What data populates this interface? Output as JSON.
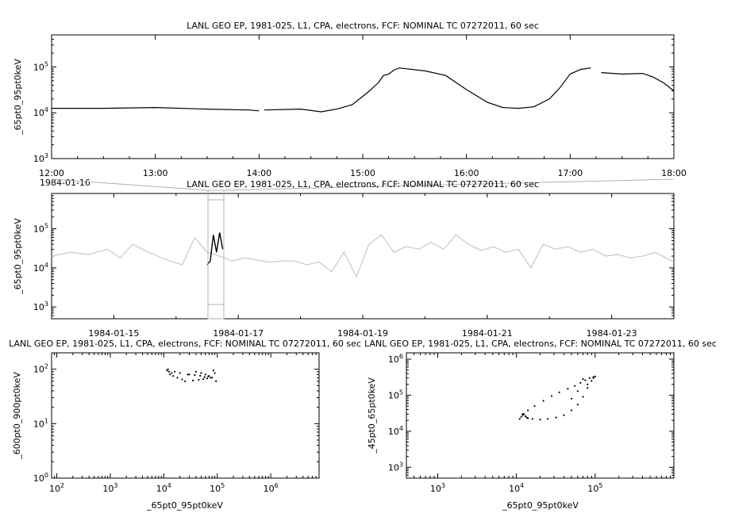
{
  "chart_data": [
    {
      "id": "top",
      "type": "line",
      "title": "LANL GEO EP, 1981-025, L1, CPA, electrons, FCF: NOMINAL TC 07272011, 60 sec",
      "ylabel": "_65pt0_95pt0keV",
      "xlabel": "",
      "yscale": "log",
      "ylim": [
        1000,
        500000
      ],
      "xlim": [
        "12:00",
        "18:00"
      ],
      "x_ticks": [
        "12:00",
        "13:00",
        "14:00",
        "15:00",
        "16:00",
        "17:00",
        "18:00"
      ],
      "date_label": "1984-01-16",
      "line_color": "#000000",
      "series": [
        {
          "segments": [
            {
              "x": [
                12.0,
                12.5,
                13.0,
                13.5,
                13.9,
                14.0
              ],
              "y": [
                12500,
                12500,
                13000,
                12000,
                11500,
                11000
              ]
            },
            {
              "x": [
                14.05,
                14.4,
                14.6,
                14.75,
                14.9,
                15.05,
                15.15,
                15.2,
                15.25,
                15.3,
                15.35,
                15.6,
                15.8,
                16.0,
                16.2,
                16.35,
                16.5,
                16.65,
                16.8,
                16.9,
                17.0,
                17.1,
                17.2
              ],
              "y": [
                11500,
                12000,
                10500,
                12000,
                15000,
                28000,
                45000,
                65000,
                70000,
                85000,
                95000,
                82000,
                65000,
                32000,
                17000,
                13000,
                12500,
                13500,
                20000,
                35000,
                70000,
                88000,
                95000
              ]
            },
            {
              "x": [
                17.3,
                17.5,
                17.7,
                17.8,
                17.9,
                18.0
              ],
              "y": [
                75000,
                70000,
                72000,
                60000,
                45000,
                30000
              ]
            }
          ]
        }
      ]
    },
    {
      "id": "overview",
      "type": "line",
      "title": "LANL GEO EP, 1981-025, L1, CPA, electrons, FCF: NOMINAL TC 07272011, 60 sec",
      "ylabel": "_65pt0_95pt0keV",
      "xlabel": "",
      "yscale": "log",
      "ylim": [
        500,
        800000
      ],
      "x_ticks": [
        "1984-01-15",
        "1984-01-17",
        "1984-01-19",
        "1984-01-21",
        "1984-01-23"
      ],
      "line_color": "#c8c8c8",
      "highlight_color": "#000000",
      "series": [
        {
          "name": "",
          "x_days": [
            14.0,
            14.3,
            14.6,
            14.9,
            15.1,
            15.3,
            15.5,
            15.7,
            15.9,
            16.1,
            16.3,
            16.5,
            16.7,
            16.9,
            17.1,
            17.3,
            17.5,
            17.7,
            17.9,
            18.1,
            18.3,
            18.5,
            18.7,
            18.9,
            19.1,
            19.3,
            19.5,
            19.7,
            19.9,
            20.1,
            20.3,
            20.5,
            20.7,
            20.9,
            21.1,
            21.3,
            21.5,
            21.7,
            21.9,
            22.1,
            22.3,
            22.5,
            22.7,
            22.9,
            23.1,
            23.3,
            23.5,
            23.7,
            24.0
          ],
          "y": [
            20000,
            25000,
            22000,
            30000,
            18000,
            40000,
            28000,
            20000,
            15000,
            12000,
            60000,
            25000,
            20000,
            15000,
            18000,
            16000,
            14000,
            15000,
            15000,
            12000,
            14000,
            8000,
            25000,
            6000,
            40000,
            70000,
            25000,
            35000,
            30000,
            45000,
            30000,
            70000,
            40000,
            28000,
            35000,
            25000,
            30000,
            10000,
            40000,
            30000,
            35000,
            25000,
            30000,
            20000,
            22000,
            18000,
            20000,
            25000,
            14000
          ]
        }
      ]
    },
    {
      "id": "scatter-left",
      "type": "scatter",
      "title": "LANL GEO EP, 1981-025, L1, CPA, electrons, FCF: NOMINAL TC 07272011, 60 sec",
      "xlabel": "_65pt0_95pt0keV",
      "ylabel": "_600pt0_900pt0keV",
      "xscale": "log",
      "yscale": "log",
      "xlim": [
        80,
        8000000
      ],
      "ylim": [
        1,
        200
      ],
      "x_ticks": [
        "10^2",
        "10^3",
        "10^4",
        "10^5",
        "10^6"
      ],
      "y_ticks": [
        "10^0",
        "10^1",
        "10^2"
      ],
      "point_color": "#000000",
      "points_x": [
        12000,
        12500,
        13000,
        11500,
        14000,
        15000,
        18000,
        22000,
        30000,
        40000,
        50000,
        60000,
        70000,
        80000,
        85000,
        90000,
        95000,
        25000,
        35000,
        45000,
        55000,
        65000,
        75000,
        16000,
        20000,
        28000,
        38000,
        48000,
        58000,
        68000
      ],
      "points_y": [
        100,
        90,
        80,
        95,
        85,
        75,
        70,
        65,
        80,
        90,
        85,
        80,
        75,
        70,
        95,
        85,
        60,
        60,
        62,
        64,
        66,
        68,
        70,
        90,
        85,
        80,
        78,
        76,
        72,
        74
      ]
    },
    {
      "id": "scatter-right",
      "type": "scatter",
      "title": "LANL GEO EP, 1981-025, L1, CPA, electrons, FCF: NOMINAL TC 07272011, 60 sec",
      "xlabel": "_65pt0_95pt0keV",
      "ylabel": "_45pt0_65pt0keV",
      "xscale": "log",
      "yscale": "log",
      "xlim": [
        400,
        1000000
      ],
      "ylim": [
        500,
        1500000
      ],
      "x_ticks": [
        "10^3",
        "10^4",
        "10^5"
      ],
      "y_ticks": [
        "10^3",
        "10^4",
        "10^5",
        "10^6"
      ],
      "point_color": "#000000",
      "points_x": [
        11000,
        11500,
        12000,
        12500,
        13000,
        13500,
        14000,
        16000,
        20000,
        25000,
        32000,
        40000,
        50000,
        60000,
        70000,
        80000,
        90000,
        95000,
        100000,
        95000,
        85000,
        75000,
        65000,
        55000,
        45000,
        35000,
        28000,
        22000,
        17000,
        14000,
        12000,
        70000,
        80000,
        60000,
        50000
      ],
      "points_y": [
        22000,
        25000,
        28000,
        30000,
        26000,
        24000,
        23000,
        22000,
        21000,
        22000,
        24000,
        28000,
        38000,
        55000,
        90000,
        160000,
        250000,
        300000,
        330000,
        320000,
        300000,
        260000,
        220000,
        180000,
        150000,
        120000,
        95000,
        70000,
        50000,
        38000,
        30000,
        280000,
        200000,
        130000,
        80000
      ]
    }
  ]
}
